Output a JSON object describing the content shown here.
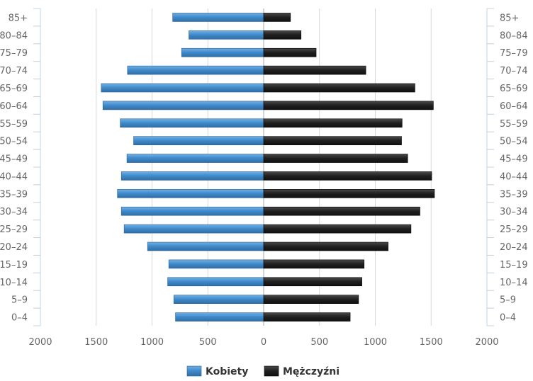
{
  "chart_data": {
    "type": "bar",
    "orientation": "horizontal",
    "subtype": "population-pyramid",
    "categories": [
      "0–4",
      "5–9",
      "10–14",
      "15–19",
      "20–24",
      "25–29",
      "30–34",
      "35–39",
      "40–44",
      "45–49",
      "50–54",
      "55–59",
      "60–64",
      "65–69",
      "70–74",
      "75–79",
      "80–84",
      "85+"
    ],
    "series": [
      {
        "name": "Kobiety",
        "side": "left",
        "color": "#3f88c8",
        "values": [
          790,
          805,
          860,
          850,
          1040,
          1250,
          1275,
          1310,
          1275,
          1225,
          1165,
          1285,
          1440,
          1455,
          1220,
          735,
          670,
          815
        ]
      },
      {
        "name": "Mężczyźni",
        "side": "right",
        "color": "#1f1f1f",
        "values": [
          775,
          850,
          880,
          900,
          1115,
          1320,
          1400,
          1530,
          1505,
          1290,
          1235,
          1240,
          1520,
          1355,
          915,
          470,
          335,
          240
        ]
      }
    ],
    "x_ticks": [
      "2000",
      "1500",
      "1000",
      "500",
      "0",
      "500",
      "1000",
      "1500",
      "2000"
    ],
    "xlim": [
      -2000,
      2000
    ],
    "grid": true,
    "legend": "bottom-center",
    "axis_labels_both_sides": true
  }
}
